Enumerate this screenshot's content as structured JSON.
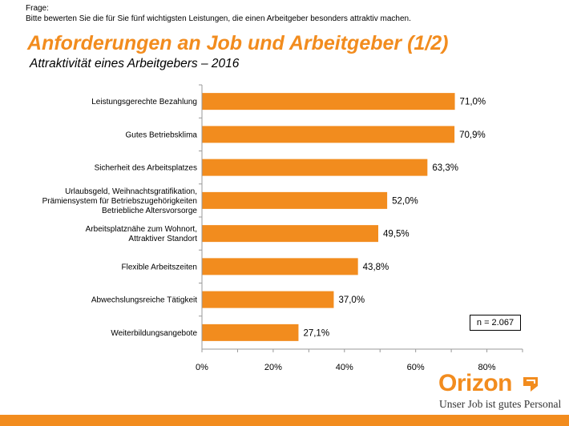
{
  "question": {
    "label": "Frage:",
    "text": "Bitte bewerten Sie die für Sie fünf wichtigsten Leistungen, die einen Arbeitgeber besonders attraktiv machen."
  },
  "title": "Anforderungen an Job und Arbeitgeber (1/2)",
  "subtitle": "Attraktivität eines Arbeitgebers – 2016",
  "sample": "n = 2.067",
  "logo": {
    "word": "Orizon",
    "tagline": "Unser Job ist gutes Personal"
  },
  "colors": {
    "accent": "#F28C1E",
    "axis": "#999999"
  },
  "chart_data": {
    "type": "bar",
    "orientation": "horizontal",
    "categories": [
      [
        "Leistungsgerechte Bezahlung"
      ],
      [
        "Gutes Betriebsklima"
      ],
      [
        "Sicherheit des Arbeitsplatzes"
      ],
      [
        "Urlaubsgeld, Weihnachtsgratifikation,",
        "Prämiensystem für Betriebszugehörigkeiten",
        "Betriebliche Altersvorsorge"
      ],
      [
        "Arbeitsplatznähe zum Wohnort,",
        "Attraktiver Standort"
      ],
      [
        "Flexible Arbeitszeiten"
      ],
      [
        "Abwechslungsreiche Tätigkeit"
      ],
      [
        "Weiterbildungsangebote"
      ]
    ],
    "values": [
      71.0,
      70.9,
      63.3,
      52.0,
      49.5,
      43.8,
      37.0,
      27.1
    ],
    "value_labels": [
      "71,0%",
      "70,9%",
      "63,3%",
      "52,0%",
      "49,5%",
      "43,8%",
      "37,0%",
      "27,1%"
    ],
    "xlim": [
      0,
      90
    ],
    "xticks": [
      0,
      20,
      40,
      60,
      80
    ],
    "xtick_labels": [
      "0%",
      "20%",
      "40%",
      "60%",
      "80%"
    ],
    "grid": false,
    "legend": "none"
  }
}
